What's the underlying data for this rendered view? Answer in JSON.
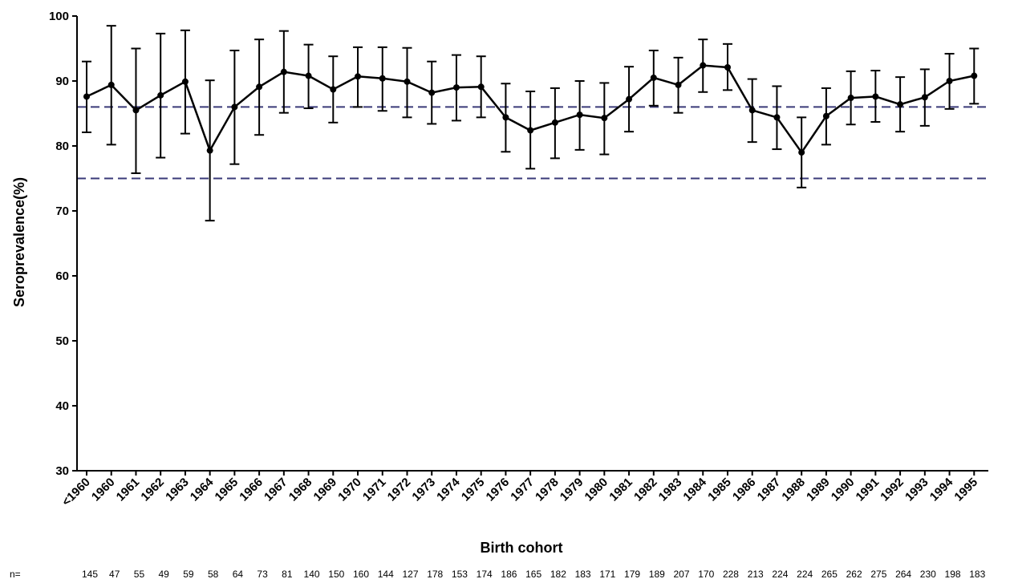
{
  "chart_data": {
    "type": "line",
    "xlabel": "Birth cohort",
    "ylabel": "Seroprevalence(%)",
    "ylim": [
      30,
      100
    ],
    "yticks": [
      30,
      40,
      50,
      60,
      70,
      80,
      90,
      100
    ],
    "categories": [
      "<1960",
      "1960",
      "1961",
      "1962",
      "1963",
      "1964",
      "1965",
      "1966",
      "1967",
      "1968",
      "1969",
      "1970",
      "1971",
      "1972",
      "1973",
      "1974",
      "1975",
      "1976",
      "1977",
      "1978",
      "1979",
      "1980",
      "1981",
      "1982",
      "1983",
      "1984",
      "1985",
      "1986",
      "1987",
      "1988",
      "1989",
      "1990",
      "1991",
      "1992",
      "1993",
      "1994",
      "1995"
    ],
    "series": [
      {
        "values": [
          87.6,
          89.4,
          85.5,
          87.8,
          89.9,
          79.3,
          86.0,
          89.1,
          91.4,
          90.8,
          88.7,
          90.7,
          90.4,
          89.9,
          88.2,
          89.0,
          89.1,
          84.4,
          82.4,
          83.6,
          84.8,
          84.3,
          87.2,
          90.5,
          89.4,
          92.4,
          92.1,
          85.5,
          84.4,
          79.0,
          84.6,
          87.4,
          87.6,
          86.4,
          87.5,
          90.0,
          90.8
        ],
        "lower": [
          82.1,
          80.2,
          75.8,
          78.2,
          81.9,
          68.5,
          77.2,
          81.7,
          85.1,
          85.8,
          83.6,
          86.0,
          85.4,
          84.4,
          83.4,
          83.9,
          84.4,
          79.1,
          76.5,
          78.1,
          79.4,
          78.7,
          82.2,
          86.2,
          85.1,
          88.3,
          88.6,
          80.6,
          79.5,
          73.6,
          80.2,
          83.3,
          83.7,
          82.2,
          83.1,
          85.7,
          86.5
        ],
        "upper": [
          93.0,
          98.5,
          95.0,
          97.3,
          97.8,
          90.1,
          94.7,
          96.4,
          97.7,
          95.6,
          93.8,
          95.2,
          95.2,
          95.1,
          93.0,
          94.0,
          93.8,
          89.6,
          88.4,
          88.9,
          90.0,
          89.7,
          92.2,
          94.7,
          93.6,
          96.4,
          95.7,
          90.3,
          89.2,
          84.4,
          88.9,
          91.5,
          91.6,
          90.6,
          91.8,
          94.2,
          95.0
        ],
        "color": "#000000"
      }
    ],
    "reference_lines": [
      {
        "value": 86,
        "style": "dashed",
        "color": "#3a3a78"
      },
      {
        "value": 75,
        "style": "dashed",
        "color": "#3a3a78"
      }
    ],
    "n_prefix": "n=",
    "n_values": [
      "145",
      "47",
      "55",
      "49",
      "59",
      "58",
      "64",
      "73",
      "81",
      "140",
      "150",
      "160",
      "144",
      "127",
      "178",
      "153",
      "174",
      "186",
      "165",
      "182",
      "183",
      "171",
      "179",
      "189",
      "207",
      "170",
      "228",
      "213",
      "224",
      "224",
      "265",
      "262",
      "275",
      "264",
      "230",
      "198",
      "183"
    ],
    "grid": false,
    "legend": "none"
  }
}
